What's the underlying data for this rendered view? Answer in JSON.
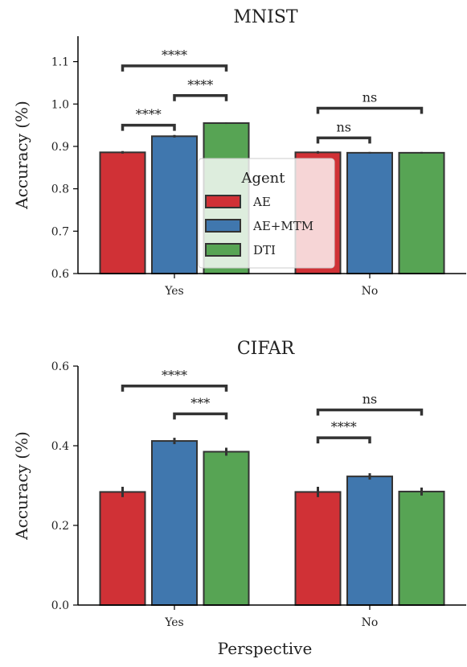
{
  "chart_data": [
    {
      "type": "bar",
      "title": "MNIST",
      "xlabel": "",
      "ylabel": "Accuracy (%)",
      "categories": [
        "Yes",
        "No"
      ],
      "ylim": [
        0.6,
        1.16
      ],
      "yticks": [
        "0.6",
        "0.7",
        "0.8",
        "0.9",
        "1.0",
        "1.1"
      ],
      "series": [
        {
          "name": "AE",
          "color": "#d03136",
          "values": [
            0.886,
            0.886
          ],
          "err": [
            0.003,
            0.003
          ]
        },
        {
          "name": "AE+MTM",
          "color": "#4077ae",
          "values": [
            0.924,
            0.885
          ],
          "err": [
            0.003,
            0.002
          ]
        },
        {
          "name": "DTI",
          "color": "#57a454",
          "values": [
            0.955,
            0.885
          ],
          "err": [
            0.002,
            0.002
          ]
        }
      ],
      "significance": [
        {
          "category": 0,
          "from": 0,
          "to": 2,
          "y": 1.09,
          "text": "****"
        },
        {
          "category": 0,
          "from": 1,
          "to": 2,
          "y": 1.02,
          "text": "****"
        },
        {
          "category": 0,
          "from": 0,
          "to": 1,
          "y": 0.95,
          "text": "****"
        },
        {
          "category": 1,
          "from": 0,
          "to": 2,
          "y": 0.99,
          "text": "ns"
        },
        {
          "category": 1,
          "from": 0,
          "to": 1,
          "y": 0.92,
          "text": "ns"
        }
      ],
      "legend": {
        "title": "Agent",
        "position": "center"
      },
      "grid": false
    },
    {
      "type": "bar",
      "title": "CIFAR",
      "xlabel": "Perspective",
      "ylabel": "Accuracy (%)",
      "categories": [
        "Yes",
        "No"
      ],
      "ylim": [
        0.0,
        0.6
      ],
      "yticks": [
        "0.0",
        "0.2",
        "0.4",
        "0.6"
      ],
      "series": [
        {
          "name": "AE",
          "color": "#d03136",
          "values": [
            0.284,
            0.284
          ],
          "err": [
            0.013,
            0.013
          ]
        },
        {
          "name": "AE+MTM",
          "color": "#4077ae",
          "values": [
            0.412,
            0.323
          ],
          "err": [
            0.008,
            0.008
          ]
        },
        {
          "name": "DTI",
          "color": "#57a454",
          "values": [
            0.385,
            0.285
          ],
          "err": [
            0.01,
            0.01
          ]
        }
      ],
      "significance": [
        {
          "category": 0,
          "from": 0,
          "to": 2,
          "y": 0.55,
          "text": "****"
        },
        {
          "category": 0,
          "from": 1,
          "to": 2,
          "y": 0.48,
          "text": "***"
        },
        {
          "category": 1,
          "from": 0,
          "to": 2,
          "y": 0.49,
          "text": "ns"
        },
        {
          "category": 1,
          "from": 0,
          "to": 1,
          "y": 0.42,
          "text": "****"
        }
      ],
      "grid": false
    }
  ]
}
